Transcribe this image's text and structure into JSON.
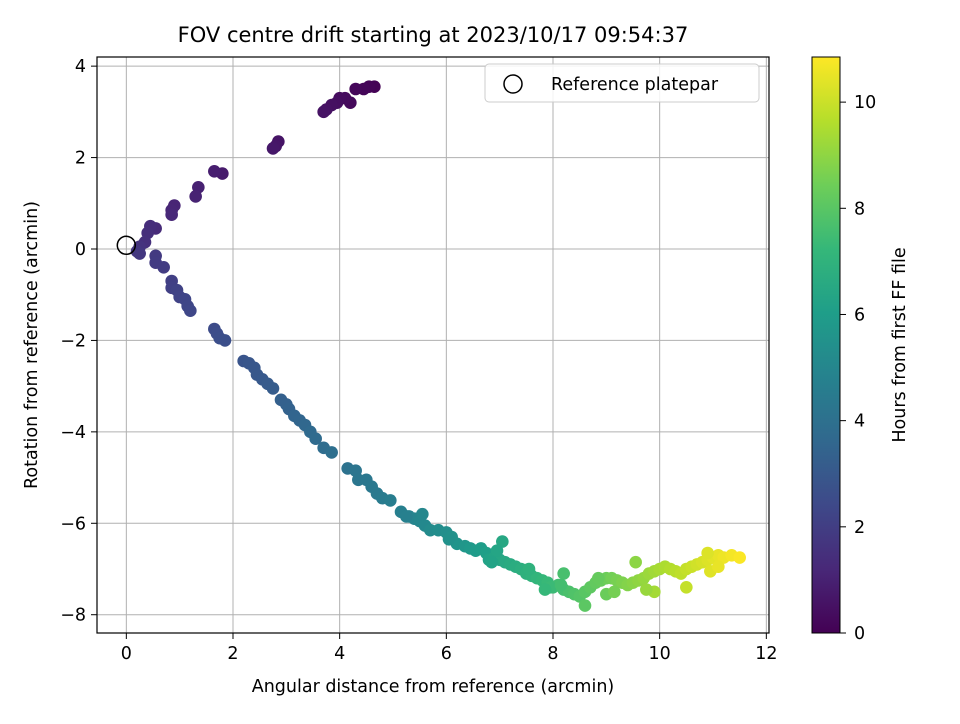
{
  "chart_data": {
    "type": "scatter",
    "title": "FOV centre drift starting at 2023/10/17 09:54:37",
    "xlabel": "Angular distance from reference (arcmin)",
    "ylabel": "Rotation from reference (arcmin)",
    "xlim": [
      -0.55,
      12.05
    ],
    "ylim": [
      -8.4,
      4.2
    ],
    "xticks": [
      0,
      2,
      4,
      6,
      8,
      10,
      12
    ],
    "yticks": [
      -8,
      -6,
      -4,
      -2,
      0,
      2,
      4
    ],
    "grid": true,
    "legend": {
      "position": "top-right",
      "entries": [
        "Reference platepar"
      ]
    },
    "reference_point": {
      "x": 0,
      "y": 0,
      "label": "Reference platepar"
    },
    "colorbar": {
      "label": "Hours from first FF file",
      "range": [
        0,
        10.85
      ],
      "ticks": [
        0,
        2,
        4,
        6,
        8,
        10
      ],
      "colormap": "viridis"
    },
    "series": [
      {
        "color_by": "hours",
        "points": [
          [
            4.65,
            3.55,
            0.05
          ],
          [
            4.55,
            3.55,
            0.1
          ],
          [
            4.45,
            3.5,
            0.15
          ],
          [
            4.3,
            3.5,
            0.2
          ],
          [
            4.2,
            3.2,
            0.25
          ],
          [
            4.1,
            3.3,
            0.3
          ],
          [
            4.0,
            3.3,
            0.35
          ],
          [
            3.95,
            3.2,
            0.4
          ],
          [
            3.85,
            3.15,
            0.45
          ],
          [
            3.75,
            3.05,
            0.5
          ],
          [
            3.7,
            3.0,
            0.55
          ],
          [
            2.85,
            2.35,
            0.6
          ],
          [
            2.8,
            2.25,
            0.65
          ],
          [
            2.75,
            2.2,
            0.7
          ],
          [
            1.8,
            1.65,
            0.8
          ],
          [
            1.65,
            1.7,
            0.9
          ],
          [
            1.35,
            1.35,
            1.0
          ],
          [
            1.3,
            1.15,
            1.05
          ],
          [
            0.9,
            0.95,
            1.1
          ],
          [
            0.85,
            0.85,
            1.15
          ],
          [
            0.85,
            0.75,
            1.2
          ],
          [
            0.55,
            0.45,
            1.3
          ],
          [
            0.45,
            0.5,
            1.4
          ],
          [
            0.4,
            0.35,
            1.45
          ],
          [
            0.35,
            0.15,
            1.5
          ],
          [
            0.25,
            0.05,
            1.6
          ],
          [
            0.2,
            -0.05,
            1.7
          ],
          [
            0.25,
            -0.1,
            1.75
          ],
          [
            0.55,
            -0.15,
            1.85
          ],
          [
            0.55,
            -0.3,
            1.9
          ],
          [
            0.7,
            -0.4,
            1.95
          ],
          [
            0.85,
            -0.7,
            2.05
          ],
          [
            0.85,
            -0.85,
            2.1
          ],
          [
            0.95,
            -0.9,
            2.15
          ],
          [
            1.0,
            -1.05,
            2.2
          ],
          [
            1.1,
            -1.1,
            2.25
          ],
          [
            1.15,
            -1.25,
            2.3
          ],
          [
            1.2,
            -1.35,
            2.35
          ],
          [
            1.65,
            -1.75,
            2.5
          ],
          [
            1.7,
            -1.85,
            2.55
          ],
          [
            1.75,
            -1.95,
            2.6
          ],
          [
            1.85,
            -2.0,
            2.65
          ],
          [
            2.2,
            -2.45,
            2.85
          ],
          [
            2.3,
            -2.5,
            2.9
          ],
          [
            2.4,
            -2.6,
            2.95
          ],
          [
            2.45,
            -2.75,
            3.0
          ],
          [
            2.55,
            -2.85,
            3.05
          ],
          [
            2.65,
            -2.95,
            3.1
          ],
          [
            2.75,
            -3.05,
            3.15
          ],
          [
            2.9,
            -3.3,
            3.3
          ],
          [
            3.0,
            -3.4,
            3.35
          ],
          [
            3.05,
            -3.5,
            3.4
          ],
          [
            3.15,
            -3.65,
            3.5
          ],
          [
            3.25,
            -3.75,
            3.55
          ],
          [
            3.35,
            -3.85,
            3.6
          ],
          [
            3.45,
            -4.0,
            3.7
          ],
          [
            3.55,
            -4.15,
            3.75
          ],
          [
            3.7,
            -4.35,
            3.85
          ],
          [
            3.85,
            -4.45,
            3.95
          ],
          [
            4.15,
            -4.8,
            4.1
          ],
          [
            4.3,
            -4.85,
            4.2
          ],
          [
            4.35,
            -5.05,
            4.25
          ],
          [
            4.5,
            -5.05,
            4.3
          ],
          [
            4.6,
            -5.2,
            4.35
          ],
          [
            4.7,
            -5.35,
            4.4
          ],
          [
            4.8,
            -5.45,
            4.5
          ],
          [
            4.95,
            -5.5,
            4.6
          ],
          [
            5.15,
            -5.75,
            4.7
          ],
          [
            5.3,
            -5.85,
            4.8
          ],
          [
            5.4,
            -5.9,
            4.9
          ],
          [
            5.5,
            -5.95,
            5.0
          ],
          [
            5.6,
            -6.05,
            5.1
          ],
          [
            5.7,
            -6.15,
            5.2
          ],
          [
            5.85,
            -6.15,
            5.3
          ],
          [
            6.0,
            -6.2,
            5.4
          ],
          [
            6.1,
            -6.3,
            5.5
          ],
          [
            6.2,
            -6.45,
            5.6
          ],
          [
            6.35,
            -6.5,
            5.7
          ],
          [
            6.45,
            -6.55,
            5.8
          ],
          [
            6.55,
            -6.6,
            5.9
          ],
          [
            6.65,
            -6.55,
            6.0
          ],
          [
            6.75,
            -6.65,
            6.1
          ],
          [
            6.8,
            -6.8,
            6.2
          ],
          [
            6.9,
            -6.75,
            6.3
          ],
          [
            7.0,
            -6.8,
            6.4
          ],
          [
            7.1,
            -6.85,
            6.5
          ],
          [
            7.2,
            -6.9,
            6.6
          ],
          [
            7.3,
            -6.95,
            6.7
          ],
          [
            7.4,
            -7.0,
            6.8
          ],
          [
            7.5,
            -7.1,
            6.9
          ],
          [
            7.6,
            -7.15,
            7.0
          ],
          [
            7.7,
            -7.2,
            7.1
          ],
          [
            7.8,
            -7.25,
            7.2
          ],
          [
            7.9,
            -7.3,
            7.3
          ],
          [
            8.0,
            -7.4,
            7.4
          ],
          [
            8.1,
            -7.35,
            7.5
          ],
          [
            8.2,
            -7.45,
            7.6
          ],
          [
            8.3,
            -7.5,
            7.7
          ],
          [
            8.4,
            -7.55,
            7.8
          ],
          [
            8.5,
            -7.6,
            7.9
          ],
          [
            8.6,
            -7.5,
            8.0
          ],
          [
            8.7,
            -7.4,
            8.1
          ],
          [
            8.8,
            -7.3,
            8.2
          ],
          [
            8.9,
            -7.25,
            8.3
          ],
          [
            9.0,
            -7.2,
            8.4
          ],
          [
            9.1,
            -7.2,
            8.5
          ],
          [
            9.2,
            -7.25,
            8.6
          ],
          [
            9.3,
            -7.3,
            8.7
          ],
          [
            9.4,
            -7.35,
            8.8
          ],
          [
            9.5,
            -7.3,
            8.9
          ],
          [
            9.6,
            -7.25,
            9.0
          ],
          [
            9.7,
            -7.2,
            9.1
          ],
          [
            9.8,
            -7.1,
            9.2
          ],
          [
            9.9,
            -7.05,
            9.3
          ],
          [
            10.0,
            -7.0,
            9.4
          ],
          [
            10.1,
            -6.95,
            9.5
          ],
          [
            10.2,
            -7.0,
            9.6
          ],
          [
            10.3,
            -7.05,
            9.7
          ],
          [
            10.4,
            -7.1,
            9.8
          ],
          [
            10.5,
            -7.0,
            9.9
          ],
          [
            10.6,
            -6.95,
            10.0
          ],
          [
            10.7,
            -6.9,
            10.1
          ],
          [
            10.8,
            -6.85,
            10.2
          ],
          [
            10.9,
            -6.8,
            10.3
          ],
          [
            11.0,
            -6.75,
            10.4
          ],
          [
            11.1,
            -6.7,
            10.5
          ],
          [
            11.2,
            -6.75,
            10.6
          ],
          [
            11.35,
            -6.7,
            10.7
          ],
          [
            11.5,
            -6.75,
            10.8
          ],
          [
            7.05,
            -6.4,
            6.45
          ],
          [
            6.85,
            -6.85,
            6.25
          ],
          [
            7.55,
            -7.0,
            6.95
          ],
          [
            8.6,
            -7.8,
            8.05
          ],
          [
            8.2,
            -7.1,
            7.65
          ],
          [
            9.55,
            -6.85,
            8.95
          ],
          [
            9.9,
            -7.5,
            9.35
          ],
          [
            10.5,
            -7.4,
            9.9
          ],
          [
            8.85,
            -7.2,
            8.25
          ],
          [
            9.0,
            -7.55,
            8.35
          ],
          [
            7.95,
            -7.4,
            7.35
          ],
          [
            6.95,
            -6.6,
            6.35
          ],
          [
            7.85,
            -7.45,
            7.25
          ],
          [
            8.15,
            -7.35,
            7.55
          ],
          [
            9.15,
            -7.5,
            8.55
          ],
          [
            9.75,
            -7.45,
            9.15
          ],
          [
            10.95,
            -7.05,
            10.35
          ],
          [
            10.9,
            -6.65,
            10.3
          ],
          [
            11.1,
            -6.95,
            10.5
          ],
          [
            5.55,
            -5.8,
            5.05
          ],
          [
            5.25,
            -5.85,
            4.75
          ],
          [
            6.05,
            -6.35,
            5.45
          ]
        ]
      }
    ]
  }
}
